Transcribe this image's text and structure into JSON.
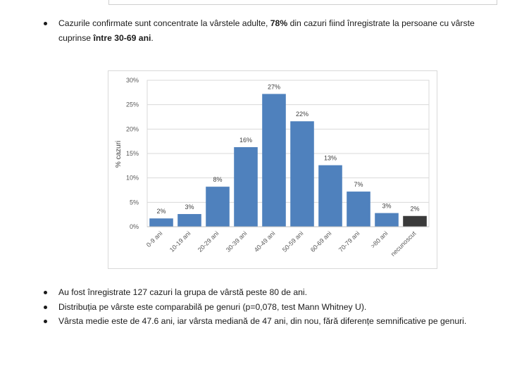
{
  "bullets_top": [
    {
      "pre": "Cazurile confirmate sunt concentrate la vârstele adulte, ",
      "bold1": "78%",
      "mid": " din cazuri fiind înregistrate la persoane cu vârste cuprinse ",
      "bold2": "între 30-69 ani",
      "post": "."
    }
  ],
  "bullets_bottom": [
    "Au fost înregistrate 127 cazuri la grupa de vârstă peste 80 de ani.",
    "Distribuția pe vârste este comparabilă pe genuri (p=0,078, test Mann Whitney U).",
    "Vârsta medie este de  47.6 ani, iar vârsta mediană de 47 ani, din nou, fără diferențe semnificative pe genuri."
  ],
  "chart_data": {
    "type": "bar",
    "title": "",
    "xlabel": "",
    "ylabel": "% cazuri",
    "categories": [
      "0-9 ani",
      "10-19 ani",
      "20-29 ani",
      "30-39 ani",
      "40-49 ani",
      "50-59 ani",
      "60-69 ani",
      "70-79 ani",
      ">80 ani",
      "necunoscut"
    ],
    "values": [
      1.7,
      2.6,
      8.2,
      16.3,
      27.2,
      21.6,
      12.6,
      7.2,
      2.8,
      2.2
    ],
    "data_labels": [
      "2%",
      "3%",
      "8%",
      "16%",
      "27%",
      "22%",
      "13%",
      "7%",
      "3%",
      "2%"
    ],
    "ylim": [
      0,
      30
    ],
    "yticks": [
      0,
      5,
      10,
      15,
      20,
      25,
      30
    ],
    "ytick_labels": [
      "0%",
      "5%",
      "10%",
      "15%",
      "20%",
      "25%",
      "30%"
    ],
    "grid": true,
    "colors": {
      "bar": "#4f81bd",
      "unknown_bar": "#3a3a3a",
      "grid": "#d9d9d9"
    }
  }
}
